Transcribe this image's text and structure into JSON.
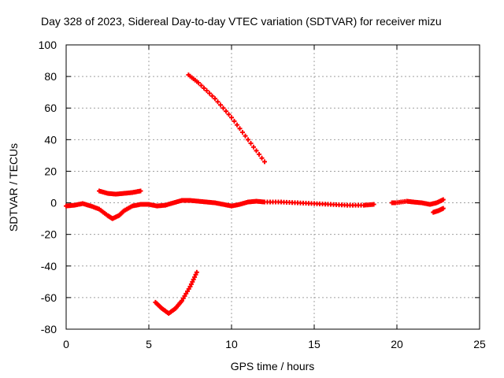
{
  "chart_data": {
    "type": "scatter",
    "title": "Day 328 of 2023, Sidereal Day-to-day VTEC variation (SDTVAR) for receiver mizu",
    "xlabel": "GPS time / hours",
    "ylabel": "SDTVAR / TECUs",
    "xlim": [
      0,
      25
    ],
    "ylim": [
      -80,
      100
    ],
    "xticks": [
      0,
      5,
      10,
      15,
      20,
      25
    ],
    "yticks": [
      -80,
      -60,
      -40,
      -20,
      0,
      20,
      40,
      60,
      80,
      100
    ],
    "grid": true,
    "marker": "+",
    "series_color": "#ff0000",
    "series": [
      {
        "name": "main-trace-a",
        "points": [
          [
            0,
            -2
          ],
          [
            0.5,
            -1.5
          ],
          [
            1,
            -0.5
          ],
          [
            1.5,
            -2
          ],
          [
            2,
            -4
          ],
          [
            2.5,
            -8
          ],
          [
            2.8,
            -10
          ],
          [
            3.2,
            -8
          ],
          [
            3.5,
            -5
          ],
          [
            4,
            -2
          ],
          [
            4.5,
            -1
          ],
          [
            5,
            -1
          ],
          [
            5.5,
            -2
          ],
          [
            6,
            -1.5
          ],
          [
            6.5,
            0
          ],
          [
            7,
            1.5
          ],
          [
            7.5,
            1.5
          ],
          [
            8,
            1
          ],
          [
            8.5,
            0.5
          ],
          [
            9,
            0
          ],
          [
            9.5,
            -1
          ],
          [
            10,
            -2
          ],
          [
            10.5,
            -1
          ],
          [
            11,
            0.5
          ],
          [
            11.5,
            1
          ],
          [
            12,
            0.5
          ],
          [
            13,
            0.5
          ],
          [
            14,
            0
          ],
          [
            15,
            -0.5
          ],
          [
            16,
            -1
          ],
          [
            17,
            -1.5
          ],
          [
            18,
            -1.5
          ],
          [
            18.6,
            -1
          ]
        ]
      },
      {
        "name": "main-trace-b",
        "points": [
          [
            19.7,
            0
          ],
          [
            19.9,
            0
          ],
          [
            20.6,
            1
          ],
          [
            21,
            0.5
          ],
          [
            21.5,
            0
          ],
          [
            22,
            -1
          ],
          [
            22.4,
            0
          ],
          [
            22.8,
            2
          ]
        ]
      },
      {
        "name": "short-arc-high",
        "points": [
          [
            2,
            7.5
          ],
          [
            2.5,
            6
          ],
          [
            3,
            5.5
          ],
          [
            3.5,
            6
          ],
          [
            4,
            6.5
          ],
          [
            4.5,
            7.5
          ]
        ]
      },
      {
        "name": "falling-arc",
        "points": [
          [
            7.4,
            81
          ],
          [
            8,
            76
          ],
          [
            9,
            66
          ],
          [
            10,
            54
          ],
          [
            11,
            40
          ],
          [
            12,
            26
          ]
        ]
      },
      {
        "name": "low-arc",
        "points": [
          [
            5.4,
            -63
          ],
          [
            5.8,
            -67
          ],
          [
            6.2,
            -70
          ],
          [
            6.6,
            -67
          ],
          [
            7,
            -62
          ],
          [
            7.5,
            -53
          ],
          [
            7.9,
            -44
          ]
        ]
      },
      {
        "name": "end-arc",
        "points": [
          [
            22.2,
            -6
          ],
          [
            22.5,
            -5
          ],
          [
            22.8,
            -3.5
          ]
        ]
      }
    ]
  }
}
